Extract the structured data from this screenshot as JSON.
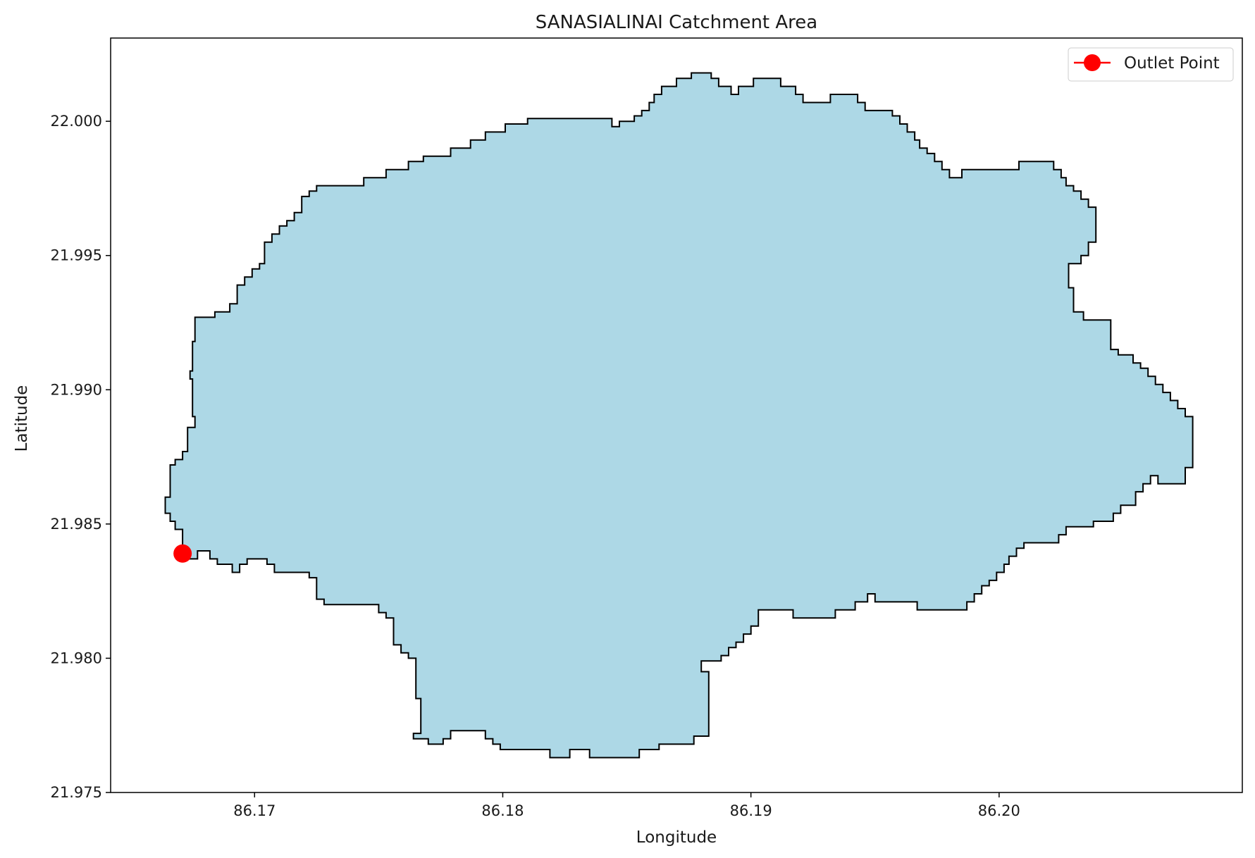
{
  "title": "SANASIALINAI Catchment Area",
  "chart_data": {
    "type": "map-polygon",
    "title": "SANASIALINAI Catchment Area",
    "xlabel": "Longitude",
    "ylabel": "Latitude",
    "xlim": [
      86.1642,
      86.2098
    ],
    "ylim": [
      21.975,
      22.0031
    ],
    "xticks": [
      "86.17",
      "86.18",
      "86.19",
      "86.20"
    ],
    "xtick_values": [
      86.17,
      86.18,
      86.19,
      86.2
    ],
    "yticks": [
      "21.975",
      "21.980",
      "21.985",
      "21.990",
      "21.995",
      "22.000"
    ],
    "ytick_values": [
      21.975,
      21.98,
      21.985,
      21.99,
      21.995,
      22.0
    ],
    "grid": false,
    "legend": {
      "placement": "upper-right",
      "entries": [
        {
          "label": "Outlet Point",
          "color": "#ff0000"
        }
      ]
    },
    "catchment": {
      "fill": "#add8e6",
      "edge": "#000000",
      "boundary": [
        [
          86.1671,
          21.9837
        ],
        [
          86.1677,
          21.9837
        ],
        [
          86.1677,
          21.984
        ],
        [
          86.1682,
          21.984
        ],
        [
          86.1682,
          21.9837
        ],
        [
          86.1685,
          21.9837
        ],
        [
          86.1685,
          21.9835
        ],
        [
          86.1691,
          21.9835
        ],
        [
          86.1691,
          21.9832
        ],
        [
          86.1694,
          21.9832
        ],
        [
          86.1694,
          21.9835
        ],
        [
          86.1697,
          21.9835
        ],
        [
          86.1697,
          21.9837
        ],
        [
          86.1705,
          21.9837
        ],
        [
          86.1705,
          21.9835
        ],
        [
          86.1708,
          21.9835
        ],
        [
          86.1708,
          21.9832
        ],
        [
          86.1722,
          21.9832
        ],
        [
          86.1722,
          21.983
        ],
        [
          86.1725,
          21.983
        ],
        [
          86.1725,
          21.9822
        ],
        [
          86.1728,
          21.9822
        ],
        [
          86.1728,
          21.982
        ],
        [
          86.175,
          21.982
        ],
        [
          86.175,
          21.9817
        ],
        [
          86.1753,
          21.9817
        ],
        [
          86.1753,
          21.9815
        ],
        [
          86.1756,
          21.9815
        ],
        [
          86.1756,
          21.9805
        ],
        [
          86.1759,
          21.9805
        ],
        [
          86.1759,
          21.9802
        ],
        [
          86.1762,
          21.9802
        ],
        [
          86.1762,
          21.98
        ],
        [
          86.1765,
          21.98
        ],
        [
          86.1765,
          21.9785
        ],
        [
          86.1767,
          21.9785
        ],
        [
          86.1767,
          21.9772
        ],
        [
          86.1764,
          21.9772
        ],
        [
          86.1764,
          21.977
        ],
        [
          86.177,
          21.977
        ],
        [
          86.177,
          21.9768
        ],
        [
          86.1776,
          21.9768
        ],
        [
          86.1776,
          21.977
        ],
        [
          86.1779,
          21.977
        ],
        [
          86.1779,
          21.9773
        ],
        [
          86.1793,
          21.9773
        ],
        [
          86.1793,
          21.977
        ],
        [
          86.1796,
          21.977
        ],
        [
          86.1796,
          21.9768
        ],
        [
          86.1799,
          21.9768
        ],
        [
          86.1799,
          21.9766
        ],
        [
          86.1819,
          21.9766
        ],
        [
          86.1819,
          21.9763
        ],
        [
          86.1827,
          21.9763
        ],
        [
          86.1827,
          21.9766
        ],
        [
          86.1835,
          21.9766
        ],
        [
          86.1835,
          21.9763
        ],
        [
          86.1855,
          21.9763
        ],
        [
          86.1855,
          21.9766
        ],
        [
          86.1863,
          21.9766
        ],
        [
          86.1863,
          21.9768
        ],
        [
          86.1877,
          21.9768
        ],
        [
          86.1877,
          21.9771
        ],
        [
          86.1883,
          21.9771
        ],
        [
          86.1883,
          21.9795
        ],
        [
          86.188,
          21.9795
        ],
        [
          86.188,
          21.9799
        ],
        [
          86.1888,
          21.9799
        ],
        [
          86.1888,
          21.9801
        ],
        [
          86.1891,
          21.9801
        ],
        [
          86.1891,
          21.9804
        ],
        [
          86.1894,
          21.9804
        ],
        [
          86.1894,
          21.9806
        ],
        [
          86.1897,
          21.9806
        ],
        [
          86.1897,
          21.9809
        ],
        [
          86.19,
          21.9809
        ],
        [
          86.19,
          21.9812
        ],
        [
          86.1903,
          21.9812
        ],
        [
          86.1903,
          21.9818
        ],
        [
          86.1917,
          21.9818
        ],
        [
          86.1917,
          21.9815
        ],
        [
          86.1934,
          21.9815
        ],
        [
          86.1934,
          21.9818
        ],
        [
          86.1942,
          21.9818
        ],
        [
          86.1942,
          21.9821
        ],
        [
          86.1947,
          21.9821
        ],
        [
          86.1947,
          21.9824
        ],
        [
          86.195,
          21.9824
        ],
        [
          86.195,
          21.9821
        ],
        [
          86.1967,
          21.9821
        ],
        [
          86.1967,
          21.9818
        ],
        [
          86.1987,
          21.9818
        ],
        [
          86.1987,
          21.9821
        ],
        [
          86.199,
          21.9821
        ],
        [
          86.199,
          21.9824
        ],
        [
          86.1993,
          21.9824
        ],
        [
          86.1993,
          21.9827
        ],
        [
          86.1996,
          21.9827
        ],
        [
          86.1996,
          21.9829
        ],
        [
          86.1999,
          21.9829
        ],
        [
          86.1999,
          21.9832
        ],
        [
          86.2002,
          21.9832
        ],
        [
          86.2002,
          21.9835
        ],
        [
          86.2004,
          21.9835
        ],
        [
          86.2004,
          21.9838
        ],
        [
          86.2007,
          21.9838
        ],
        [
          86.2007,
          21.9841
        ],
        [
          86.201,
          21.9841
        ],
        [
          86.201,
          21.9843
        ],
        [
          86.2024,
          21.9843
        ],
        [
          86.2024,
          21.9846
        ],
        [
          86.2027,
          21.9846
        ],
        [
          86.2027,
          21.9849
        ],
        [
          86.2038,
          21.9849
        ],
        [
          86.2038,
          21.9851
        ],
        [
          86.2046,
          21.9851
        ],
        [
          86.2046,
          21.9854
        ],
        [
          86.2049,
          21.9854
        ],
        [
          86.2049,
          21.9857
        ],
        [
          86.2055,
          21.9857
        ],
        [
          86.2055,
          21.9862
        ],
        [
          86.2058,
          21.9862
        ],
        [
          86.2058,
          21.9865
        ],
        [
          86.2061,
          21.9865
        ],
        [
          86.2061,
          21.9868
        ],
        [
          86.2064,
          21.9868
        ],
        [
          86.2064,
          21.9865
        ],
        [
          86.2075,
          21.9865
        ],
        [
          86.2075,
          21.9871
        ],
        [
          86.2078,
          21.9871
        ],
        [
          86.2078,
          21.989
        ],
        [
          86.2075,
          21.989
        ],
        [
          86.2075,
          21.9893
        ],
        [
          86.2072,
          21.9893
        ],
        [
          86.2072,
          21.9896
        ],
        [
          86.2069,
          21.9896
        ],
        [
          86.2069,
          21.9899
        ],
        [
          86.2066,
          21.9899
        ],
        [
          86.2066,
          21.9902
        ],
        [
          86.2063,
          21.9902
        ],
        [
          86.2063,
          21.9905
        ],
        [
          86.206,
          21.9905
        ],
        [
          86.206,
          21.9908
        ],
        [
          86.2057,
          21.9908
        ],
        [
          86.2057,
          21.991
        ],
        [
          86.2054,
          21.991
        ],
        [
          86.2054,
          21.9913
        ],
        [
          86.2048,
          21.9913
        ],
        [
          86.2048,
          21.9915
        ],
        [
          86.2045,
          21.9915
        ],
        [
          86.2045,
          21.9926
        ],
        [
          86.2034,
          21.9926
        ],
        [
          86.2034,
          21.9929
        ],
        [
          86.203,
          21.9929
        ],
        [
          86.203,
          21.9938
        ],
        [
          86.2028,
          21.9938
        ],
        [
          86.2028,
          21.9947
        ],
        [
          86.2033,
          21.9947
        ],
        [
          86.2033,
          21.995
        ],
        [
          86.2036,
          21.995
        ],
        [
          86.2036,
          21.9955
        ],
        [
          86.2039,
          21.9955
        ],
        [
          86.2039,
          21.9968
        ],
        [
          86.2036,
          21.9968
        ],
        [
          86.2036,
          21.9971
        ],
        [
          86.2033,
          21.9971
        ],
        [
          86.2033,
          21.9974
        ],
        [
          86.203,
          21.9974
        ],
        [
          86.203,
          21.9976
        ],
        [
          86.2027,
          21.9976
        ],
        [
          86.2027,
          21.9979
        ],
        [
          86.2025,
          21.9979
        ],
        [
          86.2025,
          21.9982
        ],
        [
          86.2022,
          21.9982
        ],
        [
          86.2022,
          21.9985
        ],
        [
          86.2008,
          21.9985
        ],
        [
          86.2008,
          21.9982
        ],
        [
          86.1985,
          21.9982
        ],
        [
          86.1985,
          21.9979
        ],
        [
          86.198,
          21.9979
        ],
        [
          86.198,
          21.9982
        ],
        [
          86.1977,
          21.9982
        ],
        [
          86.1977,
          21.9985
        ],
        [
          86.1974,
          21.9985
        ],
        [
          86.1974,
          21.9988
        ],
        [
          86.1971,
          21.9988
        ],
        [
          86.1971,
          21.999
        ],
        [
          86.1968,
          21.999
        ],
        [
          86.1968,
          21.9993
        ],
        [
          86.1966,
          21.9993
        ],
        [
          86.1966,
          21.9996
        ],
        [
          86.1963,
          21.9996
        ],
        [
          86.1963,
          21.9999
        ],
        [
          86.196,
          21.9999
        ],
        [
          86.196,
          22.0002
        ],
        [
          86.1957,
          22.0002
        ],
        [
          86.1957,
          22.0004
        ],
        [
          86.1946,
          22.0004
        ],
        [
          86.1946,
          22.0007
        ],
        [
          86.1943,
          22.0007
        ],
        [
          86.1943,
          22.001
        ],
        [
          86.1932,
          22.001
        ],
        [
          86.1932,
          22.0007
        ],
        [
          86.1921,
          22.0007
        ],
        [
          86.1921,
          22.001
        ],
        [
          86.1918,
          22.001
        ],
        [
          86.1918,
          22.0013
        ],
        [
          86.1912,
          22.0013
        ],
        [
          86.1912,
          22.0016
        ],
        [
          86.1901,
          22.0016
        ],
        [
          86.1901,
          22.0013
        ],
        [
          86.1895,
          22.0013
        ],
        [
          86.1895,
          22.001
        ],
        [
          86.1892,
          22.001
        ],
        [
          86.1892,
          22.0013
        ],
        [
          86.1887,
          22.0013
        ],
        [
          86.1887,
          22.0016
        ],
        [
          86.1884,
          22.0016
        ],
        [
          86.1884,
          22.0018
        ],
        [
          86.1876,
          22.0018
        ],
        [
          86.1876,
          22.0016
        ],
        [
          86.187,
          22.0016
        ],
        [
          86.187,
          22.0013
        ],
        [
          86.1864,
          22.0013
        ],
        [
          86.1864,
          22.001
        ],
        [
          86.1861,
          22.001
        ],
        [
          86.1861,
          22.0007
        ],
        [
          86.1859,
          22.0007
        ],
        [
          86.1859,
          22.0004
        ],
        [
          86.1856,
          22.0004
        ],
        [
          86.1856,
          22.0002
        ],
        [
          86.1853,
          22.0002
        ],
        [
          86.1853,
          22.0
        ],
        [
          86.1847,
          22.0
        ],
        [
          86.1847,
          21.9998
        ],
        [
          86.1844,
          21.9998
        ],
        [
          86.1844,
          22.0001
        ],
        [
          86.181,
          22.0001
        ],
        [
          86.181,
          21.9999
        ],
        [
          86.1801,
          21.9999
        ],
        [
          86.1801,
          21.9996
        ],
        [
          86.1793,
          21.9996
        ],
        [
          86.1793,
          21.9993
        ],
        [
          86.1787,
          21.9993
        ],
        [
          86.1787,
          21.999
        ],
        [
          86.1779,
          21.999
        ],
        [
          86.1779,
          21.9987
        ],
        [
          86.1768,
          21.9987
        ],
        [
          86.1768,
          21.9985
        ],
        [
          86.1762,
          21.9985
        ],
        [
          86.1762,
          21.9982
        ],
        [
          86.1753,
          21.9982
        ],
        [
          86.1753,
          21.9979
        ],
        [
          86.1744,
          21.9979
        ],
        [
          86.1744,
          21.9976
        ],
        [
          86.1725,
          21.9976
        ],
        [
          86.1725,
          21.9974
        ],
        [
          86.1722,
          21.9974
        ],
        [
          86.1722,
          21.9972
        ],
        [
          86.1719,
          21.9972
        ],
        [
          86.1719,
          21.9966
        ],
        [
          86.1716,
          21.9966
        ],
        [
          86.1716,
          21.9963
        ],
        [
          86.1713,
          21.9963
        ],
        [
          86.1713,
          21.9961
        ],
        [
          86.171,
          21.9961
        ],
        [
          86.171,
          21.9958
        ],
        [
          86.1707,
          21.9958
        ],
        [
          86.1707,
          21.9955
        ],
        [
          86.1704,
          21.9955
        ],
        [
          86.1704,
          21.9947
        ],
        [
          86.1702,
          21.9947
        ],
        [
          86.1702,
          21.9945
        ],
        [
          86.1699,
          21.9945
        ],
        [
          86.1699,
          21.9942
        ],
        [
          86.1696,
          21.9942
        ],
        [
          86.1696,
          21.9939
        ],
        [
          86.1693,
          21.9939
        ],
        [
          86.1693,
          21.9932
        ],
        [
          86.169,
          21.9932
        ],
        [
          86.169,
          21.9929
        ],
        [
          86.1684,
          21.9929
        ],
        [
          86.1684,
          21.9927
        ],
        [
          86.1676,
          21.9927
        ],
        [
          86.1676,
          21.9918
        ],
        [
          86.1675,
          21.9918
        ],
        [
          86.1675,
          21.9907
        ],
        [
          86.1674,
          21.9907
        ],
        [
          86.1674,
          21.9904
        ],
        [
          86.1675,
          21.9904
        ],
        [
          86.1675,
          21.989
        ],
        [
          86.1676,
          21.989
        ],
        [
          86.1676,
          21.9886
        ],
        [
          86.1673,
          21.9886
        ],
        [
          86.1673,
          21.9877
        ],
        [
          86.1671,
          21.9877
        ],
        [
          86.1671,
          21.9874
        ],
        [
          86.1668,
          21.9874
        ],
        [
          86.1668,
          21.9872
        ],
        [
          86.1666,
          21.9872
        ],
        [
          86.1666,
          21.986
        ],
        [
          86.1664,
          21.986
        ],
        [
          86.1664,
          21.9854
        ],
        [
          86.1666,
          21.9854
        ],
        [
          86.1666,
          21.9851
        ],
        [
          86.1668,
          21.9851
        ],
        [
          86.1668,
          21.9848
        ],
        [
          86.1671,
          21.9848
        ],
        [
          86.1671,
          21.9837
        ]
      ]
    },
    "outlet_point": {
      "lon": 86.1671,
      "lat": 21.9839,
      "label": "Outlet Point",
      "color": "#ff0000"
    }
  }
}
